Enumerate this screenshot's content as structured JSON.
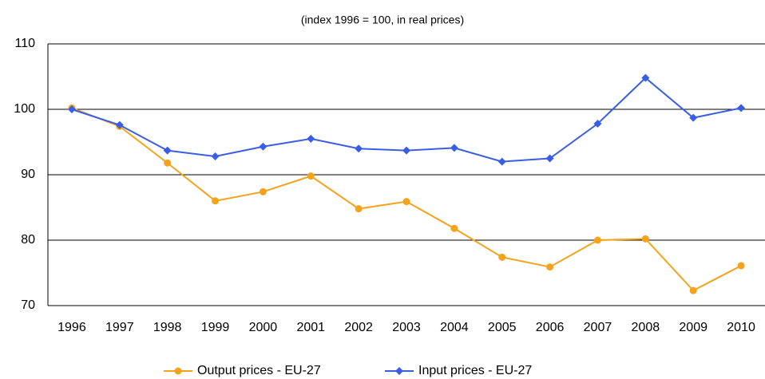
{
  "chart_data": {
    "type": "line",
    "subtitle": "(index 1996 = 100, in real prices)",
    "categories": [
      "1996",
      "1997",
      "1998",
      "1999",
      "2000",
      "2001",
      "2002",
      "2003",
      "2004",
      "2005",
      "2006",
      "2007",
      "2008",
      "2009",
      "2010"
    ],
    "series": [
      {
        "name": "Output prices - EU-27",
        "color": "#f5a31a",
        "marker": "circle",
        "values": [
          100.2,
          97.4,
          91.8,
          86.0,
          87.4,
          89.8,
          84.8,
          85.9,
          81.8,
          77.4,
          75.9,
          80.0,
          80.2,
          72.3,
          76.1
        ]
      },
      {
        "name": "Input prices - EU-27",
        "color": "#3a5de6",
        "marker": "diamond",
        "values": [
          100.0,
          97.6,
          93.7,
          92.8,
          94.3,
          95.5,
          94.0,
          93.7,
          94.1,
          92.0,
          92.5,
          97.8,
          104.8,
          98.7,
          100.2
        ]
      }
    ],
    "ylim": [
      70,
      110
    ],
    "yticks": [
      70,
      80,
      90,
      100,
      110
    ],
    "grid": true,
    "legend": "bottom"
  }
}
